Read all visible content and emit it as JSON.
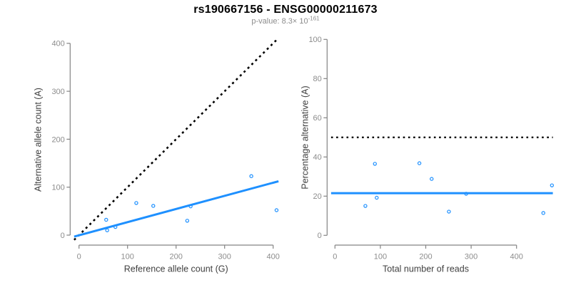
{
  "header": {
    "title": "rs190667156 - ENSG00000211673",
    "subtitle": {
      "text": "p-value: 8.3× 10",
      "exponent": "-161"
    }
  },
  "colors": {
    "accent_blue": "#1e90ff",
    "reference_black": "#000000",
    "axis_line": "#848484",
    "tick_label": "#8c8c8c",
    "axis_title": "#404040",
    "title": "#000000",
    "subtitle": "#8c8c8c",
    "background": "#ffffff"
  },
  "chart_data": [
    {
      "id": "allele-count-scatter",
      "type": "scatter",
      "xlabel": "Reference allele count (G)",
      "ylabel": "Alternative allele count (A)",
      "xlim": [
        0,
        400
      ],
      "ylim": [
        0,
        400
      ],
      "xticks": [
        0,
        100,
        200,
        300,
        400
      ],
      "yticks": [
        0,
        100,
        200,
        300,
        400
      ],
      "grid": false,
      "points": [
        [
          56,
          32
        ],
        [
          58,
          10
        ],
        [
          75,
          17
        ],
        [
          118,
          67
        ],
        [
          153,
          61
        ],
        [
          223,
          30
        ],
        [
          230,
          60
        ],
        [
          355,
          123
        ],
        [
          407,
          52
        ]
      ],
      "identity_line": {
        "slope": 1,
        "intercept": 0,
        "style": "dotted",
        "color_key": "reference_black"
      },
      "fit_line": {
        "slope": 0.274,
        "intercept": -0.3,
        "style": "solid",
        "color_key": "accent_blue"
      }
    },
    {
      "id": "percentage-alternative-scatter",
      "type": "scatter",
      "xlabel": "Total number of reads",
      "ylabel": "Percentage alternative (A)",
      "xlim": [
        0,
        400
      ],
      "ylim": [
        0,
        100
      ],
      "xticks": [
        0,
        100,
        200,
        300,
        400
      ],
      "yticks": [
        0,
        20,
        40,
        60,
        80,
        100
      ],
      "grid": false,
      "points": [
        [
          67,
          15
        ],
        [
          88,
          36.5
        ],
        [
          92,
          19.2
        ],
        [
          186,
          36.8
        ],
        [
          213,
          28.8
        ],
        [
          251,
          12.1
        ],
        [
          289,
          21.2
        ],
        [
          459,
          11.4
        ],
        [
          478,
          25.5
        ]
      ],
      "reference_hline": {
        "y": 50,
        "style": "dotted",
        "color_key": "reference_black"
      },
      "mean_hline": {
        "y": 21.5,
        "style": "solid",
        "color_key": "accent_blue"
      }
    }
  ]
}
